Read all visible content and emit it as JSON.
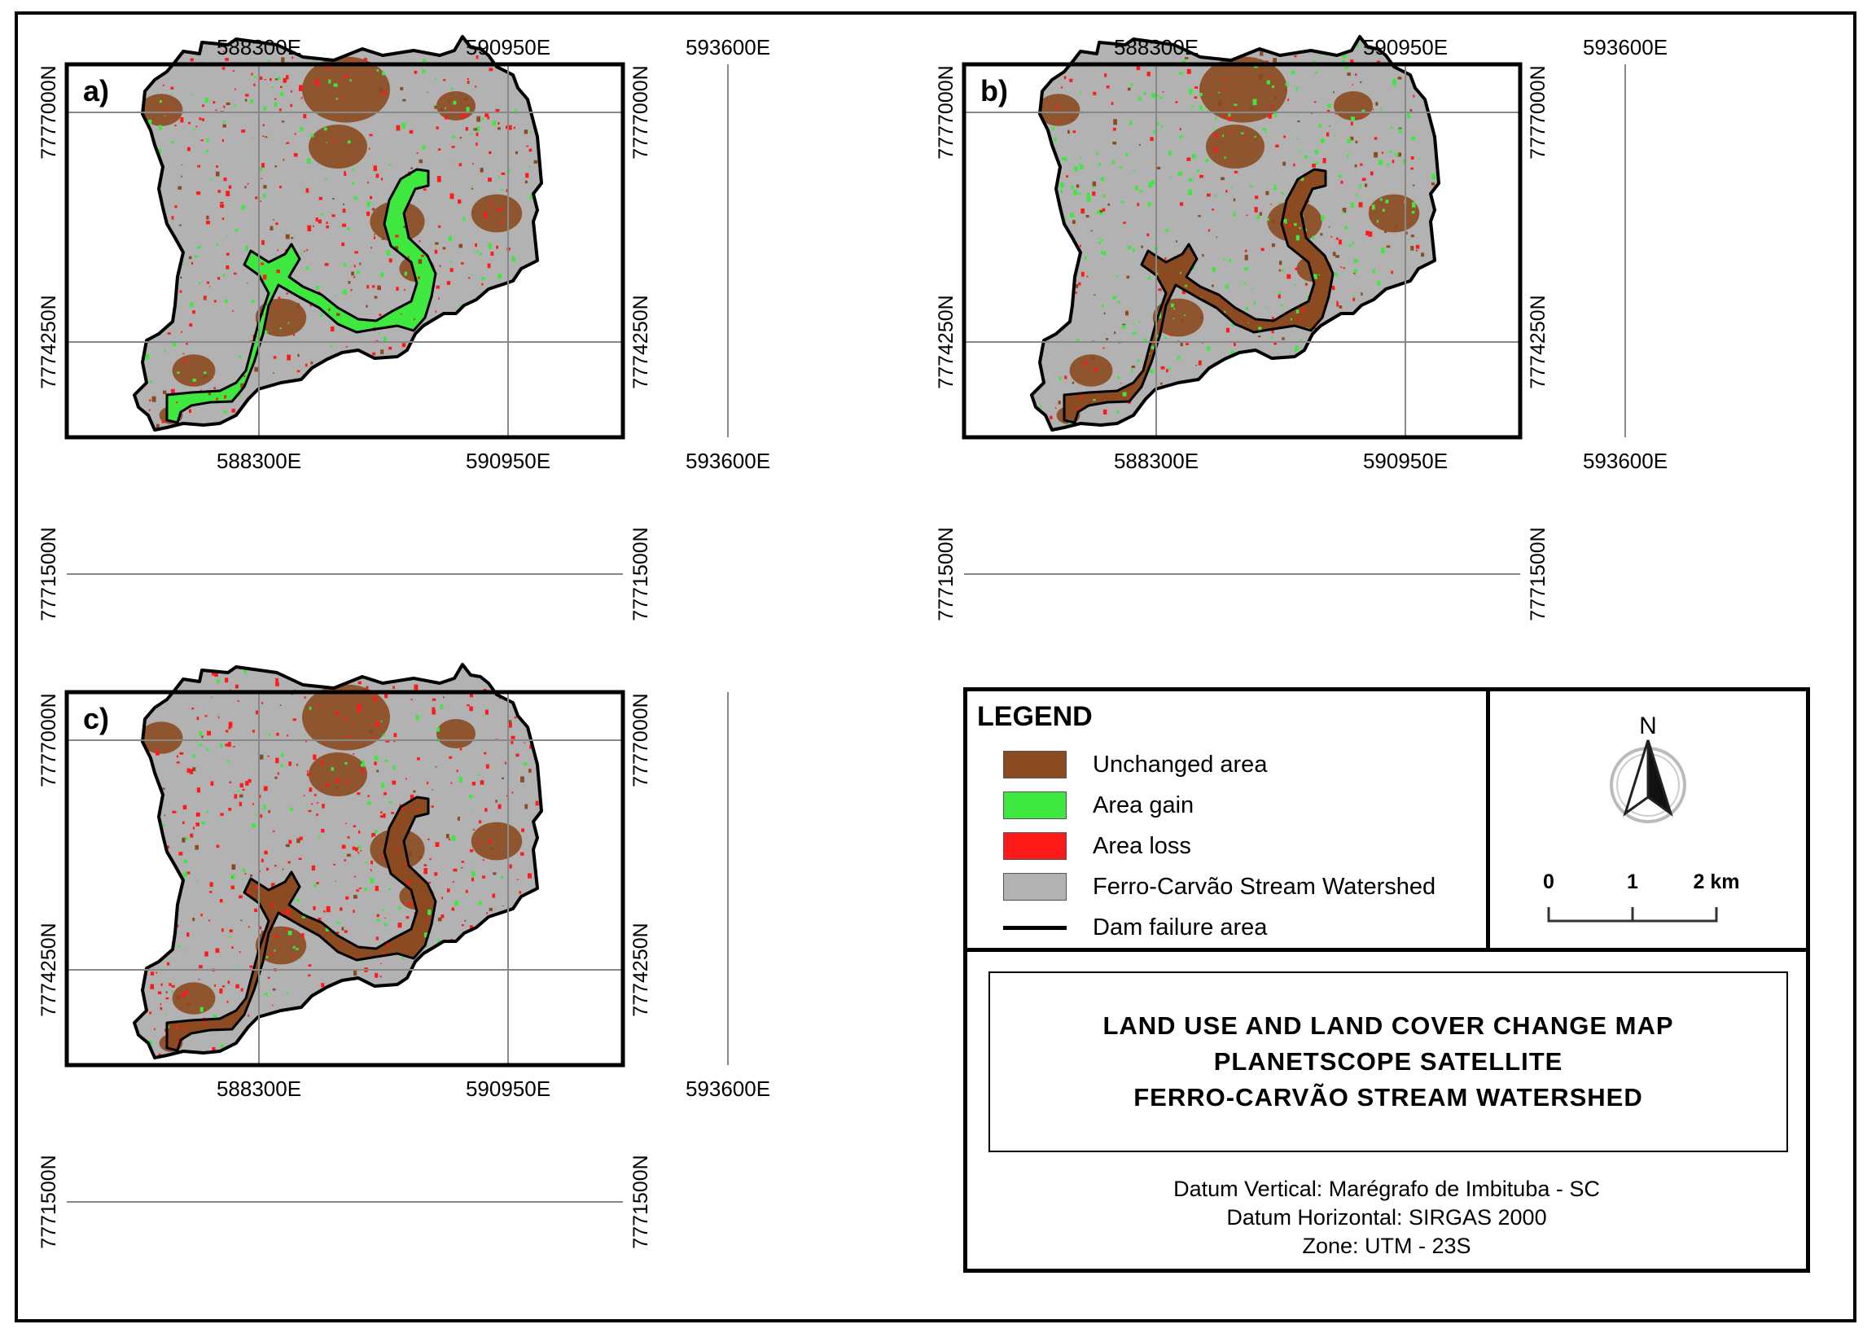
{
  "figure": {
    "panels": [
      {
        "id": "a",
        "label": "a)"
      },
      {
        "id": "b",
        "label": "b)"
      },
      {
        "id": "c",
        "label": "c)"
      }
    ],
    "easting_ticks": [
      "588300E",
      "590950E",
      "593600E"
    ],
    "northing_ticks": [
      "7777000N",
      "7774250N",
      "7771500N"
    ]
  },
  "legend": {
    "title": "LEGEND",
    "items": [
      {
        "label": "Unchanged area",
        "color": "#8B4A20",
        "kind": "fill"
      },
      {
        "label": "Area gain",
        "color": "#3EE83E",
        "kind": "fill"
      },
      {
        "label": "Area loss",
        "color": "#FF1A1A",
        "kind": "fill"
      },
      {
        "label": "Ferro-Carvão Stream Watershed",
        "color": "#B2B2B2",
        "kind": "fill"
      },
      {
        "label": "Dam failure area",
        "color": "#000000",
        "kind": "line"
      }
    ]
  },
  "north_arrow": {
    "label": "N"
  },
  "scale_bar": {
    "labels": [
      "0",
      "1",
      "2 km"
    ]
  },
  "title_block": {
    "lines": [
      "LAND USE AND LAND COVER CHANGE MAP",
      "PLANETSCOPE SATELLITE",
      "FERRO-CARVÃO STREAM WATERSHED"
    ]
  },
  "datum": {
    "lines": [
      "Datum Vertical: Marégrafo de Imbituba - SC",
      "Datum Horizontal: SIRGAS 2000",
      "Zone: UTM - 23S"
    ]
  }
}
